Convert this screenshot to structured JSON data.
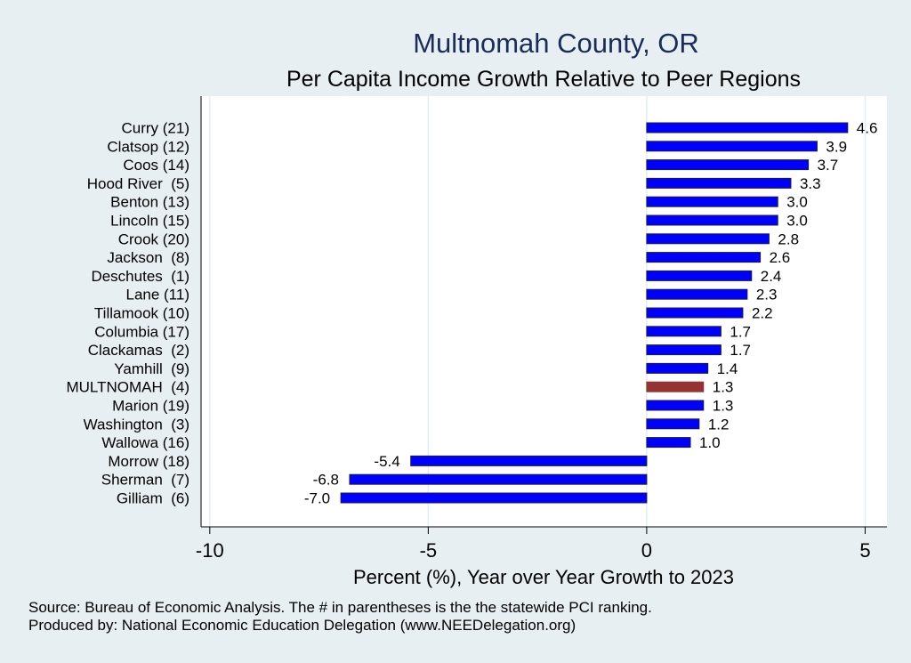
{
  "chart_data": {
    "type": "bar",
    "orientation": "horizontal",
    "title": "Multnomah County, OR",
    "subtitle": "Per Capita Income Growth Relative to Peer Regions",
    "xlabel": "Percent (%), Year over Year Growth to 2023",
    "ylabel": "",
    "xlim": [
      -10.2,
      5.5
    ],
    "xticks": [
      -10,
      -5,
      0,
      5
    ],
    "xtick_labels": [
      "-10",
      "-5",
      "0",
      "5"
    ],
    "grid": true,
    "categories": [
      "Curry (21)",
      "Clatsop (12)",
      "Coos (14)",
      "Hood River  (5)",
      "Benton (13)",
      "Lincoln (15)",
      "Crook (20)",
      "Jackson  (8)",
      "Deschutes  (1)",
      "Lane (11)",
      "Tillamook (10)",
      "Columbia (17)",
      "Clackamas  (2)",
      "Yamhill  (9)",
      "MULTNOMAH  (4)",
      "Marion (19)",
      "Washington  (3)",
      "Wallowa (16)",
      "Morrow (18)",
      "Sherman  (7)",
      "Gilliam  (6)"
    ],
    "values": [
      4.6,
      3.9,
      3.7,
      3.3,
      3.0,
      3.0,
      2.8,
      2.6,
      2.4,
      2.3,
      2.2,
      1.7,
      1.7,
      1.4,
      1.3,
      1.3,
      1.2,
      1.0,
      -5.4,
      -6.8,
      -7.0
    ],
    "value_labels": [
      "4.6",
      "3.9",
      "3.7",
      "3.3",
      "3.0",
      "3.0",
      "2.8",
      "2.6",
      "2.4",
      "2.3",
      "2.2",
      "1.7",
      "1.7",
      "1.4",
      "1.3",
      "1.3",
      "1.2",
      "1.0",
      "-5.4",
      "-6.8",
      "-7.0"
    ],
    "highlight_index": 14,
    "colors": {
      "bar": "#0000ff",
      "highlight": "#963232",
      "bar_outline": "#1a1a4a",
      "grid": "#e2eef2",
      "plot_bg": "#ffffff",
      "page_bg": "#e8eff2"
    }
  },
  "notes": {
    "source": "Source: Bureau of Economic Analysis. The # in parentheses is the the statewide PCI ranking.",
    "produced_by": "Produced by: National Economic Education Delegation (www.NEEDelegation.org)"
  }
}
